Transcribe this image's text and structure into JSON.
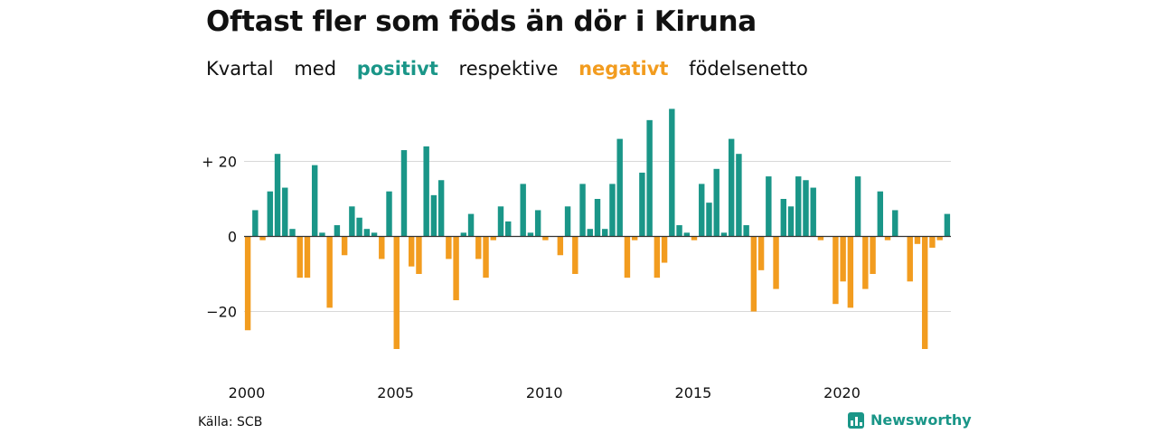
{
  "title": "Oftast fler som föds än dör i Kiruna",
  "subtitle": {
    "w1": "Kvartal",
    "w2": "med",
    "positive_word": "positivt",
    "w3": "respektive",
    "negative_word": "negativt",
    "w4": "födelsenetto"
  },
  "source": "Källa: SCB",
  "brand": {
    "name": "Newsworthy",
    "icon": "newsworthy-logo-icon"
  },
  "colors": {
    "positive": "#1a9688",
    "negative": "#f29c1f",
    "grid": "#d9d9d9",
    "zero_line": "#333333"
  },
  "chart_data": {
    "type": "bar",
    "x_start": "2000 Q1",
    "frequency": "quarter",
    "y_tick_labels": [
      "+ 20",
      "0",
      "−20"
    ],
    "y_ticks": [
      20,
      0,
      -20
    ],
    "x_tick_labels": [
      "2000",
      "2005",
      "2010",
      "2015",
      "2020"
    ],
    "ylim": [
      -32,
      36
    ],
    "grid": true,
    "values": [
      -25,
      7,
      -1,
      12,
      22,
      13,
      2,
      -11,
      -11,
      19,
      1,
      -19,
      3,
      -5,
      8,
      5,
      2,
      1,
      -6,
      12,
      -30,
      23,
      -8,
      -10,
      24,
      11,
      15,
      -6,
      -17,
      1,
      6,
      -6,
      -11,
      -1,
      8,
      4,
      0,
      14,
      1,
      7,
      -1,
      0,
      -5,
      8,
      -10,
      14,
      2,
      10,
      2,
      14,
      26,
      -11,
      -1,
      17,
      31,
      -11,
      -7,
      34,
      3,
      1,
      -1,
      14,
      9,
      18,
      1,
      26,
      22,
      3,
      -20,
      -9,
      16,
      -14,
      10,
      8,
      16,
      15,
      13,
      -1,
      0,
      -18,
      -12,
      -19,
      16,
      -14,
      -10,
      12,
      -1,
      7,
      0,
      -12,
      -2,
      -30,
      -3,
      -1,
      6
    ]
  }
}
